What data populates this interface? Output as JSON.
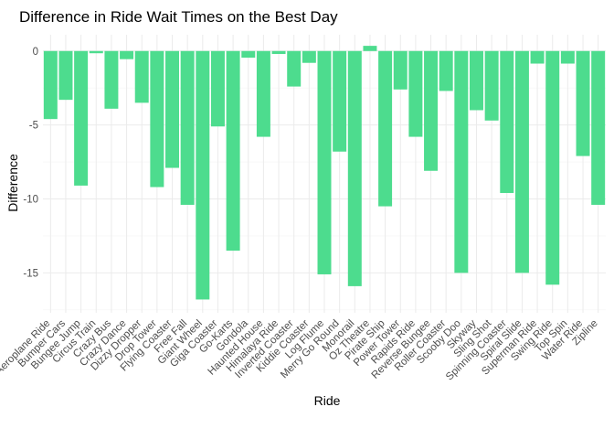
{
  "chart_data": {
    "type": "bar",
    "title": "Difference in Ride Wait Times on the Best Day",
    "xlabel": "Ride",
    "ylabel": "Difference",
    "ylim": [
      -17.7,
      1.1
    ],
    "yticks": [
      0,
      -5,
      -10,
      -15
    ],
    "ytick_labels": [
      "0",
      "-5",
      "-10",
      "-15"
    ],
    "grid": true,
    "bar_color": "#4ddc8e",
    "categories": [
      "Aeroplane Ride",
      "Bumper Cars",
      "Bungee Jump",
      "Circus Train",
      "Crazy Bus",
      "Crazy Dance",
      "Dizzy Dropper",
      "Drop Tower",
      "Flying Coaster",
      "Free Fall",
      "Giant Wheel",
      "Giga Coaster",
      "Go-Karts",
      "Gondola",
      "Haunted House",
      "Himalaya Ride",
      "Inverted Coaster",
      "Kiddie Coaster",
      "Log Flume",
      "Merry Go Round",
      "Monorail",
      "Oz Theatre",
      "Pirate Ship",
      "Power Tower",
      "Rapids Ride",
      "Reverse Bungee",
      "Roller Coaster",
      "Scooby Doo",
      "Skyway",
      "Sling Shot",
      "Spinning Coaster",
      "Spiral Slide",
      "Superman Ride",
      "Swing Ride",
      "Top Spin",
      "Water Ride",
      "Zipline"
    ],
    "values": [
      -4.6,
      -3.3,
      -9.1,
      -0.15,
      -3.9,
      -0.55,
      -3.5,
      -9.2,
      -7.9,
      -10.4,
      -16.8,
      -5.1,
      -13.5,
      -0.45,
      -5.8,
      -0.2,
      -2.4,
      -0.8,
      -15.1,
      -6.8,
      -15.9,
      0.35,
      -10.5,
      -2.6,
      -5.8,
      -8.1,
      -2.7,
      -15.0,
      -4.0,
      -4.7,
      -9.6,
      -15.0,
      -0.85,
      -15.8,
      -0.85,
      -7.1,
      -10.4
    ]
  }
}
